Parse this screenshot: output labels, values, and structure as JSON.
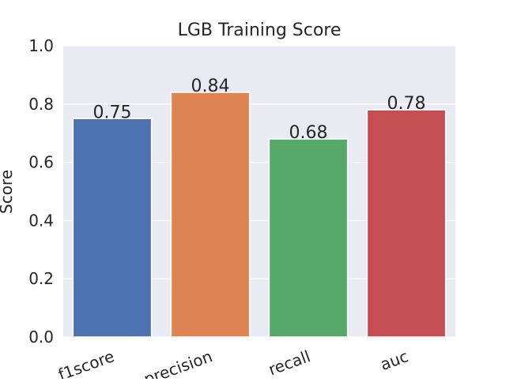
{
  "chart_data": {
    "type": "bar",
    "title": "LGB Training Score",
    "xlabel": "",
    "ylabel": "Score",
    "categories": [
      "f1score",
      "precision",
      "recall",
      "auc"
    ],
    "values": [
      0.75,
      0.84,
      0.68,
      0.78
    ],
    "data_labels": [
      "0.75",
      "0.84",
      "0.68",
      "0.78"
    ],
    "ylim": [
      0,
      1.0
    ],
    "yticks": [
      0.0,
      0.2,
      0.4,
      0.6,
      0.8,
      1.0
    ],
    "ytick_labels": [
      "0.0",
      "0.2",
      "0.4",
      "0.6",
      "0.8",
      "1.0"
    ],
    "grid": true,
    "legend": "none",
    "colors": [
      "#4c72b0",
      "#dd8452",
      "#55a868",
      "#c44e52"
    ],
    "background_color": "#eaeaf2",
    "grid_color": "#ffffff"
  }
}
